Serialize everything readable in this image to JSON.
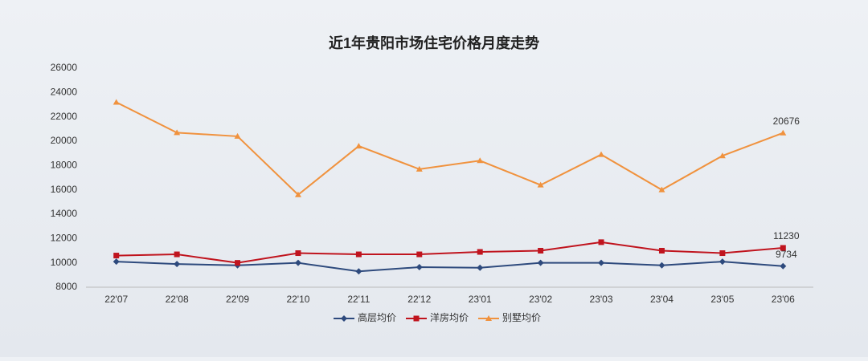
{
  "chart_data": {
    "type": "line",
    "title": "近1年贵阳市场住宅价格月度走势",
    "categories": [
      "22'07",
      "22'08",
      "22'09",
      "22'10",
      "22'11",
      "22'12",
      "23'01",
      "23'02",
      "23'03",
      "23'04",
      "23'05",
      "23'06"
    ],
    "series": [
      {
        "name": "高层均价",
        "color": "#2e4a7d",
        "marker": "diamond",
        "values": [
          10100,
          9900,
          9800,
          10000,
          9300,
          9650,
          9600,
          10000,
          10000,
          9800,
          10100,
          9734
        ]
      },
      {
        "name": "洋房均价",
        "color": "#c0141e",
        "marker": "square",
        "values": [
          10600,
          10700,
          10000,
          10800,
          10700,
          10700,
          10900,
          11000,
          11700,
          11000,
          10800,
          11230
        ]
      },
      {
        "name": "别墅均价",
        "color": "#f0923e",
        "marker": "triangle",
        "values": [
          23200,
          20700,
          20400,
          15600,
          19600,
          17700,
          18400,
          16400,
          18900,
          16000,
          18800,
          20676
        ]
      }
    ],
    "ylim": [
      8000,
      26000
    ],
    "yticks": [
      8000,
      10000,
      12000,
      14000,
      16000,
      18000,
      20000,
      22000,
      24000,
      26000
    ],
    "grid": false,
    "legend": "bottom"
  }
}
